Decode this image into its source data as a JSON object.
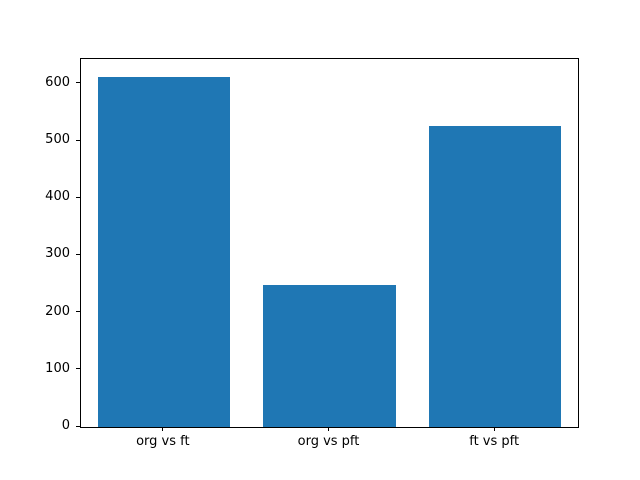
{
  "chart_data": {
    "type": "bar",
    "title": "",
    "xlabel": "",
    "ylabel": "",
    "categories": [
      "org vs ft",
      "org vs pft",
      "ft vs pft"
    ],
    "values": [
      613,
      248,
      527
    ],
    "ylim": [
      0,
      643.65
    ],
    "yticks": [
      0,
      100,
      200,
      300,
      400,
      500,
      600
    ],
    "bar_color": "#1f77b4",
    "bar_width_fraction": 0.8,
    "grid": false,
    "legend": null,
    "background_color": "#ffffff",
    "spine_color": "#000000"
  }
}
